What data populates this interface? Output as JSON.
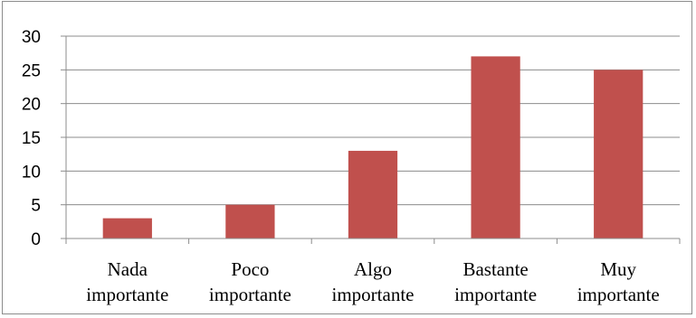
{
  "chart_data": {
    "type": "bar",
    "title": "",
    "xlabel": "",
    "ylabel": "",
    "categories": [
      [
        "Nada",
        "importante"
      ],
      [
        "Poco",
        "importante"
      ],
      [
        "Algo",
        "importante"
      ],
      [
        "Bastante",
        "importante"
      ],
      [
        "Muy",
        "importante"
      ]
    ],
    "values": [
      3,
      5,
      13,
      27,
      25
    ],
    "ylim": [
      0,
      30
    ],
    "yticks": [
      "0",
      "5",
      "10",
      "15",
      "20",
      "25",
      "30"
    ],
    "grid": true,
    "legend": "none",
    "colors": {
      "bar": "#c0504d",
      "grid": "#8c8c8c",
      "axis": "#8c8c8c",
      "border": "#8c8c8c"
    }
  }
}
